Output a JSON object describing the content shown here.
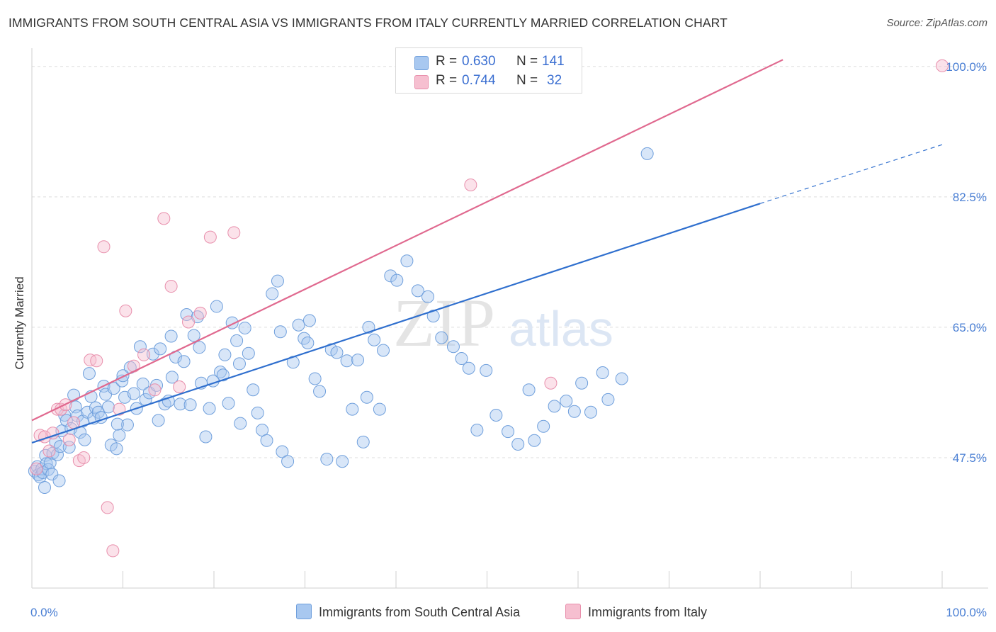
{
  "header": {
    "title": "IMMIGRANTS FROM SOUTH CENTRAL ASIA VS IMMIGRANTS FROM ITALY CURRENTLY MARRIED CORRELATION CHART",
    "source": "Source: ZipAtlas.com"
  },
  "watermark": {
    "zip": "ZIP",
    "atlas": "atlas"
  },
  "legend_top": {
    "r_label": "R =",
    "n_label": "N =",
    "rows": [
      {
        "r": "0.630",
        "n": "141"
      },
      {
        "r": "0.744",
        "n": "32"
      }
    ]
  },
  "colors": {
    "blue": "#a8c8f0",
    "blue_edge": "#6f9fdc",
    "blue_line": "#2f6fce",
    "pink": "#f6bfd0",
    "pink_edge": "#e88fac",
    "pink_line": "#e0698f"
  },
  "chart_data": {
    "type": "scatter",
    "title": "IMMIGRANTS FROM SOUTH CENTRAL ASIA VS IMMIGRANTS FROM ITALY CURRENTLY MARRIED CORRELATION CHART",
    "xlabel": "",
    "ylabel": "Currently Married",
    "xlim": [
      0,
      100
    ],
    "ylim": [
      30,
      101.5
    ],
    "x_tick_labels": [
      "0.0%",
      "100.0%"
    ],
    "y_ticks": [
      47.5,
      65.0,
      82.5,
      100.0
    ],
    "y_tick_labels": [
      "47.5%",
      "65.0%",
      "82.5%",
      "100.0%"
    ],
    "grid": true,
    "legend_position": "bottom",
    "series": [
      {
        "name": "Immigrants from South Central Asia",
        "color": "#a8c8f0",
        "R": 0.63,
        "N": 141,
        "trend": {
          "x0": 0,
          "y0": 49.5,
          "x1": 80,
          "y1": 81.6,
          "dashed_to_x": 100,
          "dashed_to_y": 89.5
        },
        "points": [
          [
            0.3,
            45.7
          ],
          [
            0.6,
            46.3
          ],
          [
            0.7,
            45.2
          ],
          [
            0.9,
            44.9
          ],
          [
            1.1,
            46.0
          ],
          [
            1.2,
            45.5
          ],
          [
            1.4,
            43.5
          ],
          [
            1.5,
            47.8
          ],
          [
            1.6,
            46.7
          ],
          [
            1.8,
            45.9
          ],
          [
            2.0,
            46.8
          ],
          [
            2.2,
            45.3
          ],
          [
            2.3,
            48.1
          ],
          [
            2.6,
            49.6
          ],
          [
            2.8,
            47.9
          ],
          [
            3.0,
            44.4
          ],
          [
            3.1,
            49.0
          ],
          [
            3.3,
            51.1
          ],
          [
            3.6,
            53.2
          ],
          [
            3.8,
            52.5
          ],
          [
            4.1,
            48.9
          ],
          [
            4.3,
            51.4
          ],
          [
            4.6,
            55.9
          ],
          [
            4.8,
            54.3
          ],
          [
            5.0,
            53.1
          ],
          [
            5.3,
            50.9
          ],
          [
            5.6,
            52.4
          ],
          [
            5.8,
            49.9
          ],
          [
            6.1,
            53.6
          ],
          [
            6.3,
            58.8
          ],
          [
            6.5,
            55.7
          ],
          [
            6.8,
            52.8
          ],
          [
            7.0,
            54.2
          ],
          [
            7.3,
            53.6
          ],
          [
            7.6,
            52.9
          ],
          [
            7.9,
            57.1
          ],
          [
            8.1,
            56.0
          ],
          [
            8.4,
            54.3
          ],
          [
            8.7,
            49.2
          ],
          [
            9.0,
            56.8
          ],
          [
            9.3,
            48.7
          ],
          [
            9.6,
            50.5
          ],
          [
            9.9,
            57.8
          ],
          [
            10.2,
            55.6
          ],
          [
            10.5,
            51.9
          ],
          [
            10.8,
            59.6
          ],
          [
            11.2,
            56.1
          ],
          [
            11.5,
            54.1
          ],
          [
            11.9,
            62.4
          ],
          [
            12.2,
            57.4
          ],
          [
            12.5,
            55.3
          ],
          [
            12.9,
            56.2
          ],
          [
            13.3,
            61.4
          ],
          [
            13.7,
            57.2
          ],
          [
            14.1,
            62.1
          ],
          [
            14.6,
            54.7
          ],
          [
            15.0,
            55.1
          ],
          [
            15.4,
            58.3
          ],
          [
            15.8,
            61.0
          ],
          [
            16.3,
            54.7
          ],
          [
            16.7,
            60.4
          ],
          [
            17.0,
            66.7
          ],
          [
            17.4,
            54.6
          ],
          [
            17.8,
            63.9
          ],
          [
            18.2,
            66.4
          ],
          [
            18.6,
            57.5
          ],
          [
            19.1,
            50.3
          ],
          [
            19.5,
            54.1
          ],
          [
            19.9,
            57.8
          ],
          [
            20.3,
            67.8
          ],
          [
            20.7,
            59.0
          ],
          [
            21.2,
            61.3
          ],
          [
            21.6,
            54.8
          ],
          [
            22.0,
            65.6
          ],
          [
            22.5,
            63.2
          ],
          [
            22.9,
            52.1
          ],
          [
            23.4,
            64.9
          ],
          [
            23.8,
            61.5
          ],
          [
            24.3,
            56.6
          ],
          [
            24.8,
            53.5
          ],
          [
            25.3,
            51.2
          ],
          [
            25.8,
            49.8
          ],
          [
            26.4,
            69.5
          ],
          [
            27.0,
            71.2
          ],
          [
            27.5,
            48.3
          ],
          [
            28.1,
            47.0
          ],
          [
            28.7,
            60.3
          ],
          [
            29.3,
            65.3
          ],
          [
            29.9,
            63.5
          ],
          [
            30.5,
            65.9
          ],
          [
            31.1,
            58.1
          ],
          [
            31.6,
            56.4
          ],
          [
            32.4,
            47.3
          ],
          [
            32.9,
            62.0
          ],
          [
            33.5,
            61.6
          ],
          [
            34.1,
            47.0
          ],
          [
            34.6,
            60.5
          ],
          [
            35.2,
            54.0
          ],
          [
            35.8,
            60.6
          ],
          [
            36.4,
            49.6
          ],
          [
            37.0,
            65.0
          ],
          [
            37.6,
            63.3
          ],
          [
            38.2,
            54.0
          ],
          [
            38.6,
            61.9
          ],
          [
            39.4,
            71.9
          ],
          [
            40.1,
            71.3
          ],
          [
            41.2,
            73.9
          ],
          [
            42.4,
            69.9
          ],
          [
            43.5,
            69.1
          ],
          [
            44.1,
            66.5
          ],
          [
            45.0,
            63.6
          ],
          [
            46.3,
            62.4
          ],
          [
            47.2,
            60.8
          ],
          [
            48.0,
            59.5
          ],
          [
            48.9,
            51.2
          ],
          [
            49.9,
            59.2
          ],
          [
            51.0,
            53.2
          ],
          [
            52.3,
            51.0
          ],
          [
            53.4,
            49.3
          ],
          [
            54.6,
            56.6
          ],
          [
            55.2,
            49.8
          ],
          [
            56.2,
            51.7
          ],
          [
            57.4,
            54.4
          ],
          [
            58.7,
            55.1
          ],
          [
            59.6,
            53.7
          ],
          [
            60.4,
            57.5
          ],
          [
            61.4,
            53.6
          ],
          [
            62.7,
            58.9
          ],
          [
            63.3,
            55.3
          ],
          [
            64.8,
            58.1
          ],
          [
            67.6,
            88.3
          ],
          [
            9.4,
            52.0
          ],
          [
            10.0,
            58.5
          ],
          [
            13.9,
            52.5
          ],
          [
            15.3,
            63.8
          ],
          [
            18.4,
            62.3
          ],
          [
            21.0,
            58.6
          ],
          [
            22.8,
            60.1
          ],
          [
            27.3,
            64.4
          ],
          [
            30.3,
            62.9
          ],
          [
            36.8,
            55.6
          ]
        ]
      },
      {
        "name": "Immigrants from Italy",
        "color": "#f6bfd0",
        "R": 0.744,
        "N": 32,
        "trend": {
          "x0": 0,
          "y0": 52.5,
          "x1": 82.5,
          "y1": 100.9
        },
        "points": [
          [
            0.5,
            46.0
          ],
          [
            0.9,
            50.5
          ],
          [
            1.4,
            50.3
          ],
          [
            1.9,
            48.4
          ],
          [
            2.3,
            50.8
          ],
          [
            2.8,
            54.0
          ],
          [
            3.2,
            54.0
          ],
          [
            3.7,
            54.6
          ],
          [
            4.1,
            49.9
          ],
          [
            4.6,
            52.2
          ],
          [
            5.2,
            47.1
          ],
          [
            5.7,
            47.5
          ],
          [
            6.4,
            60.6
          ],
          [
            7.1,
            60.5
          ],
          [
            7.9,
            75.8
          ],
          [
            8.3,
            40.8
          ],
          [
            8.9,
            35.0
          ],
          [
            9.6,
            54.0
          ],
          [
            10.3,
            67.2
          ],
          [
            11.2,
            59.8
          ],
          [
            12.3,
            61.3
          ],
          [
            13.5,
            56.6
          ],
          [
            14.5,
            79.6
          ],
          [
            15.3,
            70.5
          ],
          [
            16.2,
            57.0
          ],
          [
            17.2,
            65.7
          ],
          [
            18.5,
            66.9
          ],
          [
            19.6,
            77.1
          ],
          [
            22.2,
            77.7
          ],
          [
            48.2,
            84.1
          ],
          [
            57.0,
            57.5
          ],
          [
            100.0,
            100.1
          ]
        ]
      }
    ]
  }
}
